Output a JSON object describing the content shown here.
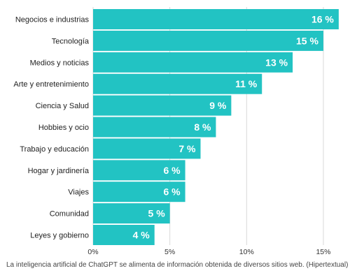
{
  "chart_data": {
    "type": "bar",
    "orientation": "horizontal",
    "categories": [
      "Negocios e industrias",
      "Tecnología",
      "Medios y noticias",
      "Arte y entretenimiento",
      "Ciencia y Salud",
      "Hobbies y ocio",
      "Trabajo y educación",
      "Hogar y jardinería",
      "Viajes",
      "Comunidad",
      "Leyes y gobierno"
    ],
    "values": [
      16,
      15,
      13,
      11,
      9,
      8,
      7,
      6,
      6,
      5,
      4
    ],
    "value_labels": [
      "16 %",
      "15 %",
      "13 %",
      "11 %",
      "9 %",
      "8 %",
      "7 %",
      "6 %",
      "6 %",
      "5 %",
      "4 %"
    ],
    "x_ticks": [
      0,
      5,
      10,
      15
    ],
    "x_tick_labels": [
      "0%",
      "5%",
      "10%",
      "15%"
    ],
    "xlim": [
      0,
      16
    ],
    "grid": true,
    "bar_color": "#22c3c3",
    "title": "",
    "xlabel": "",
    "ylabel": ""
  },
  "caption": "La inteligencia artificial de ChatGPT se alimenta de información obtenida de diversos sitios web. (Hipertextual)"
}
